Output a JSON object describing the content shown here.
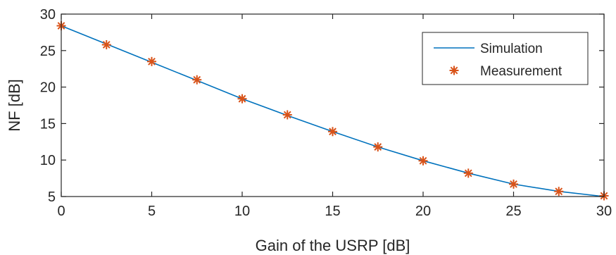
{
  "chart_data": {
    "type": "line",
    "title": "",
    "xlabel": "Gain of the USRP [dB]",
    "ylabel": "NF [dB]",
    "xlim": [
      0,
      30
    ],
    "ylim": [
      5,
      30
    ],
    "xticks": [
      "0",
      "5",
      "10",
      "15",
      "20",
      "25",
      "30"
    ],
    "yticks": [
      "5",
      "10",
      "15",
      "20",
      "25",
      "30"
    ],
    "grid": false,
    "legend_position": "top-right",
    "series": [
      {
        "name": "Simulation",
        "style": "line",
        "color": "#0072BD",
        "x": [
          0,
          2.5,
          5,
          7.5,
          10,
          12.5,
          15,
          17.5,
          20,
          22.5,
          25,
          27.5,
          30
        ],
        "y": [
          28.4,
          25.9,
          23.4,
          20.9,
          18.4,
          16.1,
          13.9,
          11.8,
          9.9,
          8.2,
          6.7,
          5.7,
          5.0
        ]
      },
      {
        "name": "Measurement",
        "style": "marker-asterisk",
        "color": "#D95319",
        "x": [
          0,
          2.5,
          5,
          7.5,
          10,
          12.5,
          15,
          17.5,
          20,
          22.5,
          25,
          27.5,
          30
        ],
        "y": [
          28.4,
          25.8,
          23.5,
          21.0,
          18.4,
          16.2,
          13.9,
          11.8,
          9.9,
          8.2,
          6.7,
          5.7,
          5.1
        ]
      }
    ]
  }
}
